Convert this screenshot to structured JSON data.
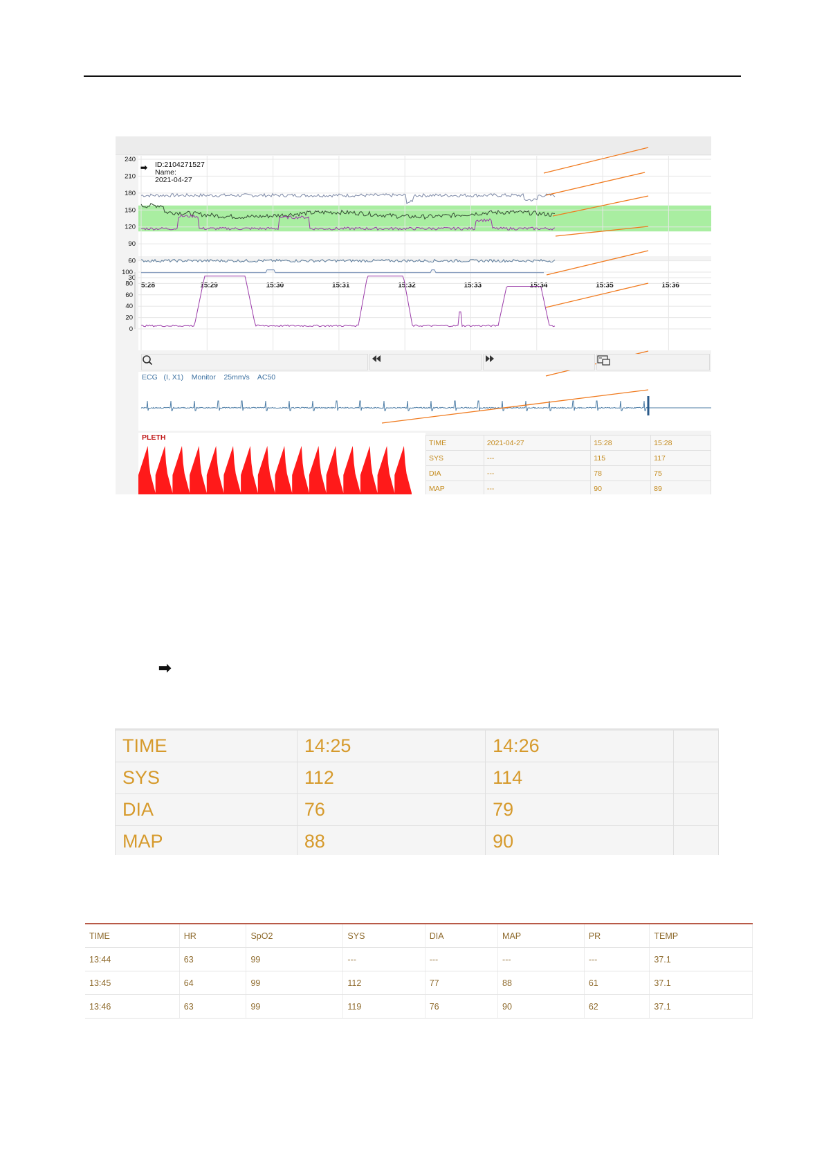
{
  "viewer": {
    "patient": {
      "id": "ID:2104271527",
      "name": "Name:",
      "date": "2021-04-27"
    },
    "trend_y_ticks": [
      "240",
      "210",
      "180",
      "150",
      "120",
      "90",
      "60",
      "30"
    ],
    "time_ticks": [
      "5:28",
      "15:29",
      "15:30",
      "15:31",
      "15:32",
      "15:33",
      "15:34",
      "15:35",
      "15:36"
    ],
    "spo2_y_ticks": [
      "100",
      "80",
      "60",
      "40",
      "20",
      "0"
    ],
    "toolbar": {
      "search_icon": "search-icon",
      "prev_icon": "rewind-icon",
      "next_icon": "fast-forward-icon",
      "export_icon": "screen-export-icon"
    },
    "ecg_label": "ECG   (I, X1)    Monitor    25mm/s    AC50",
    "pleth_label": "PLETH",
    "nibp": {
      "rows": [
        {
          "label": "TIME",
          "c1": "2021-04-27",
          "c2": "15:28",
          "c3": "15:28"
        },
        {
          "label": "SYS",
          "c1": "---",
          "c2": "115",
          "c3": "117"
        },
        {
          "label": "DIA",
          "c1": "---",
          "c2": "78",
          "c3": "75"
        },
        {
          "label": "MAP",
          "c1": "---",
          "c2": "90",
          "c3": "89"
        }
      ]
    },
    "colors": {
      "band": "#a9eea1",
      "pleth": "#ff1a1a",
      "annotation": "#f07a1e",
      "spo2": "#9a3aa8"
    }
  },
  "arrow_symbol": "➡",
  "nibp_zoom": {
    "rows": [
      {
        "label": "TIME",
        "c1": "14:25",
        "c2": "14:26",
        "c3": ""
      },
      {
        "label": "SYS",
        "c1": "112",
        "c2": "114",
        "c3": ""
      },
      {
        "label": "DIA",
        "c1": "76",
        "c2": "79",
        "c3": ""
      },
      {
        "label": "MAP",
        "c1": "88",
        "c2": "90",
        "c3": ""
      }
    ]
  },
  "trend_table": {
    "headers": [
      "TIME",
      "HR",
      "SpO2",
      "SYS",
      "DIA",
      "MAP",
      "PR",
      "TEMP"
    ],
    "rows": [
      [
        "13:44",
        "63",
        "99",
        "---",
        "---",
        "---",
        "---",
        "37.1"
      ],
      [
        "13:45",
        "64",
        "99",
        "112",
        "77",
        "88",
        "61",
        "37.1"
      ],
      [
        "13:46",
        "63",
        "99",
        "119",
        "76",
        "90",
        "62",
        "37.1"
      ]
    ]
  }
}
